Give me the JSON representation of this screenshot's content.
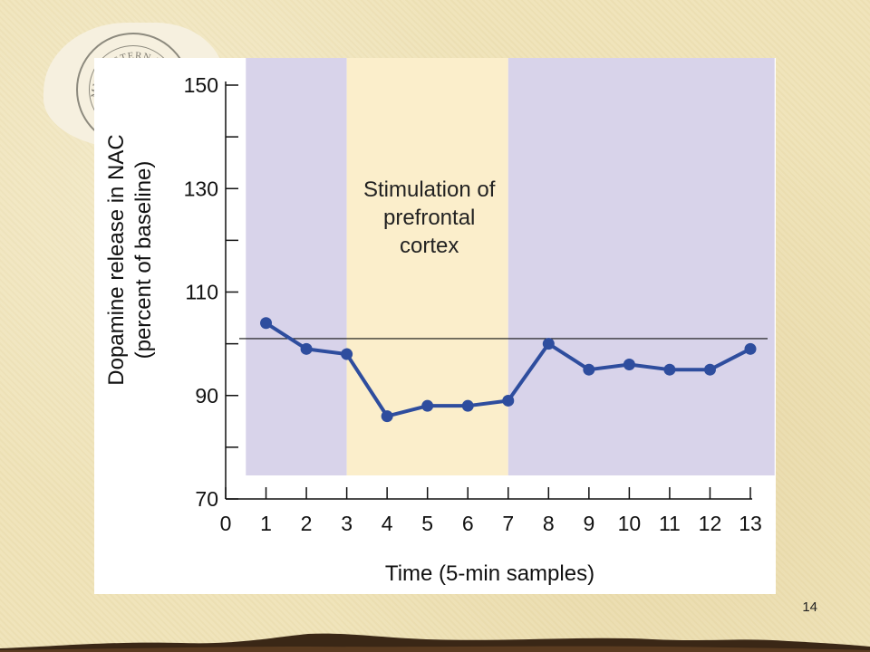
{
  "slide": {
    "number": "14"
  },
  "seal": {
    "text": "MIDWESTERN UNIV",
    "icon": "university-seal-icon"
  },
  "chart_data": {
    "type": "line",
    "title": "",
    "xlabel": "Time (5-min samples)",
    "ylabel_line1": "Dopamine release in NAC",
    "ylabel_line2": "(percent of baseline)",
    "xlim": [
      0,
      13
    ],
    "ylim": [
      70,
      150
    ],
    "x_ticks": [
      0,
      1,
      2,
      3,
      4,
      5,
      6,
      7,
      8,
      9,
      10,
      11,
      12,
      13
    ],
    "y_ticks": [
      90,
      110,
      130,
      150
    ],
    "y_ticks_extra_label": 70,
    "baseline": 101,
    "regions": [
      {
        "from": 0.5,
        "to": 3,
        "color": "#d8d3ea"
      },
      {
        "from": 3,
        "to": 7,
        "color": "#fbeecb",
        "label": [
          "Stimulation of",
          "prefrontal",
          "cortex"
        ]
      },
      {
        "from": 7,
        "to": 13.6,
        "color": "#d8d3ea"
      }
    ],
    "series": [
      {
        "color": "#2e4d9e",
        "x": [
          1,
          2,
          3,
          4,
          5,
          6,
          7,
          8,
          9,
          10,
          11,
          12,
          13
        ],
        "y": [
          104,
          99,
          98,
          86,
          88,
          88,
          89,
          100,
          95,
          96,
          95,
          95,
          99
        ]
      }
    ]
  }
}
